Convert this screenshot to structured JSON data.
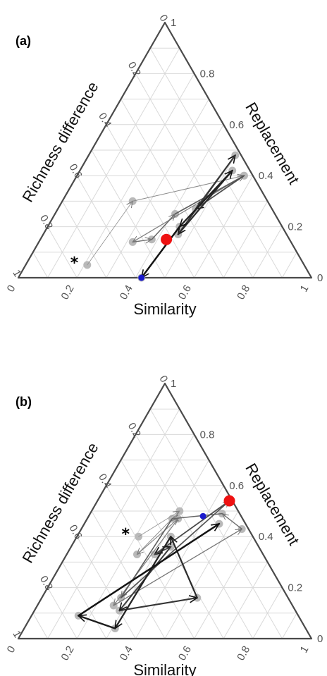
{
  "chart_data": [
    {
      "type": "ternary",
      "panel_label": "(a)",
      "axes": {
        "bottom": {
          "title": "Similarity",
          "ticks": [
            "0",
            "0.2",
            "0.4",
            "0.6",
            "0.8",
            "1"
          ]
        },
        "left": {
          "title": "Richness difference",
          "ticks": [
            "1",
            "0.8",
            "0.6",
            "0.4",
            "0.2",
            "0"
          ]
        },
        "right": {
          "title": "Replacement",
          "ticks": [
            "0",
            "0.2",
            "0.4",
            "0.6",
            "0.8",
            "1"
          ]
        }
      },
      "grid": true,
      "annotation": "*",
      "start_point": {
        "similarity": 0.42,
        "replacement": 0.0
      },
      "end_point": {
        "similarity": 0.43,
        "replacement": 0.15
      },
      "trajectory": [
        {
          "similarity": 0.21,
          "replacement": 0.05
        },
        {
          "similarity": 0.24,
          "replacement": 0.3
        },
        {
          "similarity": 0.57,
          "replacement": 0.4
        },
        {
          "similarity": 0.32,
          "replacement": 0.14
        },
        {
          "similarity": 0.38,
          "replacement": 0.15
        },
        {
          "similarity": 0.41,
          "replacement": 0.25
        },
        {
          "similarity": 0.57,
          "replacement": 0.4
        },
        {
          "similarity": 0.47,
          "replacement": 0.27
        },
        {
          "similarity": 0.5,
          "replacement": 0.48
        },
        {
          "similarity": 0.46,
          "replacement": 0.17
        },
        {
          "similarity": 0.52,
          "replacement": 0.42
        },
        {
          "similarity": 0.45,
          "replacement": 0.2
        },
        {
          "similarity": 0.42,
          "replacement": 0.0
        }
      ]
    },
    {
      "type": "ternary",
      "panel_label": "(b)",
      "axes": {
        "bottom": {
          "title": "Similarity",
          "ticks": [
            "0",
            "0.2",
            "0.4",
            "0.6",
            "0.8",
            "1"
          ]
        },
        "left": {
          "title": "Richness difference",
          "ticks": [
            "1",
            "0.8",
            "0.6",
            "0.4",
            "0.2",
            "0"
          ]
        },
        "right": {
          "title": "Replacement",
          "ticks": [
            "0",
            "0.2",
            "0.4",
            "0.6",
            "0.8",
            "1"
          ]
        }
      },
      "grid": true,
      "annotation": "*",
      "start_point": {
        "similarity": 0.39,
        "replacement": 0.48
      },
      "end_point": {
        "similarity": 0.45,
        "replacement": 0.54
      },
      "trajectory": [
        {
          "similarity": 0.21,
          "replacement": 0.4
        },
        {
          "similarity": 0.3,
          "replacement": 0.5
        },
        {
          "similarity": 0.24,
          "replacement": 0.33
        },
        {
          "similarity": 0.31,
          "replacement": 0.47
        },
        {
          "similarity": 0.26,
          "replacement": 0.13
        },
        {
          "similarity": 0.39,
          "replacement": 0.73
        },
        {
          "similarity": 0.45,
          "replacement": 0.49
        },
        {
          "similarity": 0.29,
          "replacement": 0.47
        },
        {
          "similarity": 0.27,
          "replacement": 0.16
        },
        {
          "similarity": 0.45,
          "replacement": 0.54
        },
        {
          "similarity": 0.3,
          "replacement": 0.33
        },
        {
          "similarity": 0.34,
          "replacement": 0.36
        },
        {
          "similarity": 0.29,
          "replacement": 0.11
        },
        {
          "similarity": 0.53,
          "replacement": 0.16
        },
        {
          "similarity": 0.32,
          "replacement": 0.4
        },
        {
          "similarity": 0.31,
          "replacement": 0.04
        },
        {
          "similarity": 0.16,
          "replacement": 0.09
        },
        {
          "similarity": 0.46,
          "replacement": 0.45
        }
      ]
    }
  ]
}
